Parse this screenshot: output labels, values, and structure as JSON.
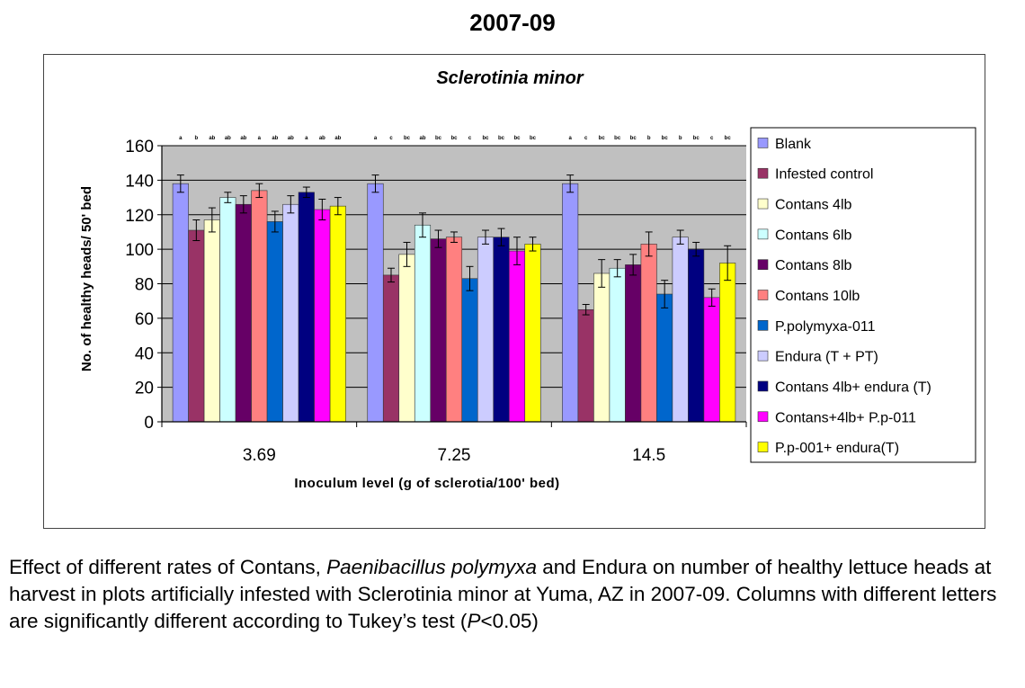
{
  "header": {
    "title": "2007-09"
  },
  "chart_data": {
    "type": "bar",
    "title": "Sclerotinia minor",
    "xlabel": "Inoculum level (g of sclerotia/100' bed)",
    "ylabel": "No. of healthy heads/ 50' bed",
    "ylim": [
      0,
      160
    ],
    "yticks": [
      0,
      20,
      40,
      60,
      80,
      100,
      120,
      140,
      160
    ],
    "grid": true,
    "legend_position": "right",
    "categories": [
      "3.69",
      "7.25",
      "14.5"
    ],
    "series": [
      {
        "name": "Blank",
        "color": "#9999ff",
        "values": [
          138,
          138,
          138
        ],
        "errors": [
          5,
          5,
          5
        ],
        "letters": [
          "a",
          "a",
          "a"
        ]
      },
      {
        "name": "Infested control",
        "color": "#993366",
        "values": [
          111,
          85,
          65
        ],
        "errors": [
          6,
          4,
          3
        ],
        "letters": [
          "b",
          "c",
          "c"
        ]
      },
      {
        "name": "Contans 4lb",
        "color": "#ffffcc",
        "values": [
          117,
          97,
          86
        ],
        "errors": [
          7,
          7,
          8
        ],
        "letters": [
          "ab",
          "bc",
          "bc"
        ]
      },
      {
        "name": "Contans 6lb",
        "color": "#ccffff",
        "values": [
          130,
          114,
          89
        ],
        "errors": [
          3,
          7,
          5
        ],
        "letters": [
          "ab",
          "ab",
          "bc"
        ]
      },
      {
        "name": "Contans 8lb",
        "color": "#660066",
        "values": [
          126,
          106,
          91
        ],
        "errors": [
          5,
          5,
          6
        ],
        "letters": [
          "ab",
          "bc",
          "bc"
        ]
      },
      {
        "name": "Contans 10lb",
        "color": "#ff8080",
        "values": [
          134,
          107,
          103
        ],
        "errors": [
          4,
          3,
          7
        ],
        "letters": [
          "a",
          "bc",
          "b"
        ]
      },
      {
        "name": "P.polymyxa-011",
        "color": "#0066cc",
        "values": [
          116,
          83,
          74
        ],
        "errors": [
          6,
          7,
          8
        ],
        "letters": [
          "ab",
          "c",
          "bc"
        ]
      },
      {
        "name": "Endura (T + PT)",
        "color": "#ccccff",
        "values": [
          126,
          107,
          107
        ],
        "errors": [
          5,
          4,
          4
        ],
        "letters": [
          "ab",
          "bc",
          "b"
        ]
      },
      {
        "name": "Contans 4lb+ endura (T)",
        "color": "#000080",
        "values": [
          133,
          107,
          100
        ],
        "errors": [
          3,
          5,
          4
        ],
        "letters": [
          "a",
          "bc",
          "bc"
        ]
      },
      {
        "name": "Contans+4lb+ P.p-011",
        "color": "#ff00ff",
        "values": [
          123,
          99,
          72
        ],
        "errors": [
          6,
          8,
          5
        ],
        "letters": [
          "ab",
          "bc",
          "c"
        ]
      },
      {
        "name": "P.p-001+ endura(T)",
        "color": "#ffff00",
        "values": [
          125,
          103,
          92
        ],
        "errors": [
          5,
          4,
          10
        ],
        "letters": [
          "ab",
          "bc",
          "bc"
        ]
      }
    ],
    "plot_area_color": "#c0c0c0"
  },
  "caption": {
    "part1": "Effect of different rates of Contans, ",
    "italic1": "Paenibacillus polymyxa",
    "part2": " and Endura on number of healthy lettuce heads at harvest in plots artificially infested with Sclerotinia minor at Yuma, AZ in 2007-09. Columns with different letters are significantly different according to Tukey’s test (",
    "italic2": "P",
    "part3": "<0.05)"
  }
}
